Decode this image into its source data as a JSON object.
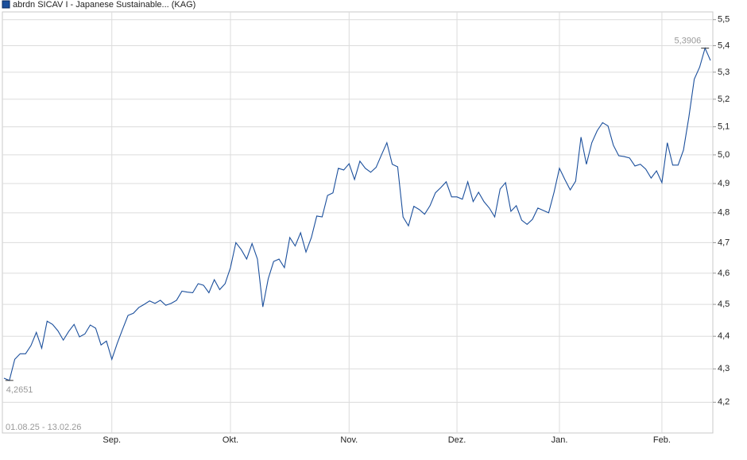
{
  "chart_data": {
    "type": "line",
    "title": "abrdn SICAV I - Japanese Sustainable... (KAG)",
    "subtitle": "01.08.25 - 13.02.26",
    "categories": [
      null,
      null,
      null,
      null,
      null,
      null,
      null,
      null,
      null,
      null,
      null,
      null,
      null,
      null,
      null,
      null,
      null,
      null,
      null,
      null,
      "Sep.",
      null,
      null,
      null,
      null,
      null,
      null,
      null,
      null,
      null,
      null,
      null,
      null,
      null,
      null,
      null,
      null,
      null,
      null,
      null,
      null,
      null,
      "Okt.",
      null,
      null,
      null,
      null,
      null,
      null,
      null,
      null,
      null,
      null,
      null,
      null,
      null,
      null,
      null,
      null,
      null,
      null,
      null,
      null,
      null,
      "Nov.",
      null,
      null,
      null,
      null,
      null,
      null,
      null,
      null,
      null,
      null,
      null,
      null,
      null,
      null,
      null,
      null,
      null,
      null,
      null,
      "Dez.",
      null,
      null,
      null,
      null,
      null,
      null,
      null,
      null,
      null,
      null,
      null,
      null,
      null,
      null,
      null,
      null,
      null,
      null,
      "Jan.",
      null,
      null,
      null,
      null,
      null,
      null,
      null,
      null,
      null,
      null,
      null,
      null,
      null,
      null,
      null,
      null,
      null,
      null,
      "Feb.",
      null,
      null,
      null,
      null,
      null,
      null,
      null,
      null,
      null
    ],
    "series": [
      {
        "name": "abrdn SICAV I - Japanese Sustainable... (KAG)",
        "color": "#1b4f9c",
        "values": [
          4.272,
          4.2651,
          4.329,
          4.346,
          4.346,
          4.371,
          4.412,
          4.363,
          4.447,
          4.437,
          4.417,
          4.388,
          4.415,
          4.437,
          4.398,
          4.407,
          4.435,
          4.425,
          4.373,
          4.385,
          4.329,
          4.378,
          4.422,
          4.465,
          4.472,
          4.49,
          4.5,
          4.511,
          4.503,
          4.513,
          4.497,
          4.503,
          4.513,
          4.542,
          4.539,
          4.537,
          4.566,
          4.561,
          4.537,
          4.579,
          4.547,
          4.566,
          4.618,
          4.7,
          4.677,
          4.646,
          4.697,
          4.646,
          4.492,
          4.582,
          4.638,
          4.646,
          4.618,
          4.717,
          4.689,
          4.733,
          4.669,
          4.717,
          4.789,
          4.786,
          4.859,
          4.868,
          4.953,
          4.947,
          4.969,
          4.914,
          4.978,
          4.953,
          4.939,
          4.956,
          5.0,
          5.043,
          4.967,
          4.958,
          4.786,
          4.756,
          4.822,
          4.811,
          4.795,
          4.824,
          4.868,
          4.886,
          4.906,
          4.854,
          4.854,
          4.846,
          4.906,
          4.838,
          4.87,
          4.838,
          4.816,
          4.786,
          4.881,
          4.903,
          4.805,
          4.824,
          4.775,
          4.761,
          4.778,
          4.816,
          4.808,
          4.8,
          4.87,
          4.953,
          4.914,
          4.878,
          4.908,
          5.063,
          4.967,
          5.043,
          5.086,
          5.115,
          5.103,
          5.034,
          4.997,
          4.994,
          4.989,
          4.961,
          4.967,
          4.95,
          4.919,
          4.944,
          4.903,
          5.043,
          4.964,
          4.964,
          5.017,
          5.135,
          5.274,
          5.319,
          5.3906,
          5.344
        ]
      }
    ],
    "annotations": {
      "max": "5,3906",
      "min": "4,2651"
    },
    "log_scale": true,
    "grid": true,
    "ylim": [
      4.11,
      5.53
    ],
    "yticks": [
      {
        "value": 4.2,
        "label": "4,2"
      },
      {
        "value": 4.3,
        "label": "4,3"
      },
      {
        "value": 4.4,
        "label": "4,4"
      },
      {
        "value": 4.5,
        "label": "4,5"
      },
      {
        "value": 4.6,
        "label": "4,6"
      },
      {
        "value": 4.7,
        "label": "4,7"
      },
      {
        "value": 4.8,
        "label": "4,8"
      },
      {
        "value": 4.9,
        "label": "4,9"
      },
      {
        "value": 5.0,
        "label": "5,0"
      },
      {
        "value": 5.1,
        "label": "5,1"
      },
      {
        "value": 5.2,
        "label": "5,2"
      },
      {
        "value": 5.3,
        "label": "5,3"
      },
      {
        "value": 5.4,
        "label": "5,4"
      },
      {
        "value": 5.5,
        "label": "5,5"
      }
    ]
  }
}
